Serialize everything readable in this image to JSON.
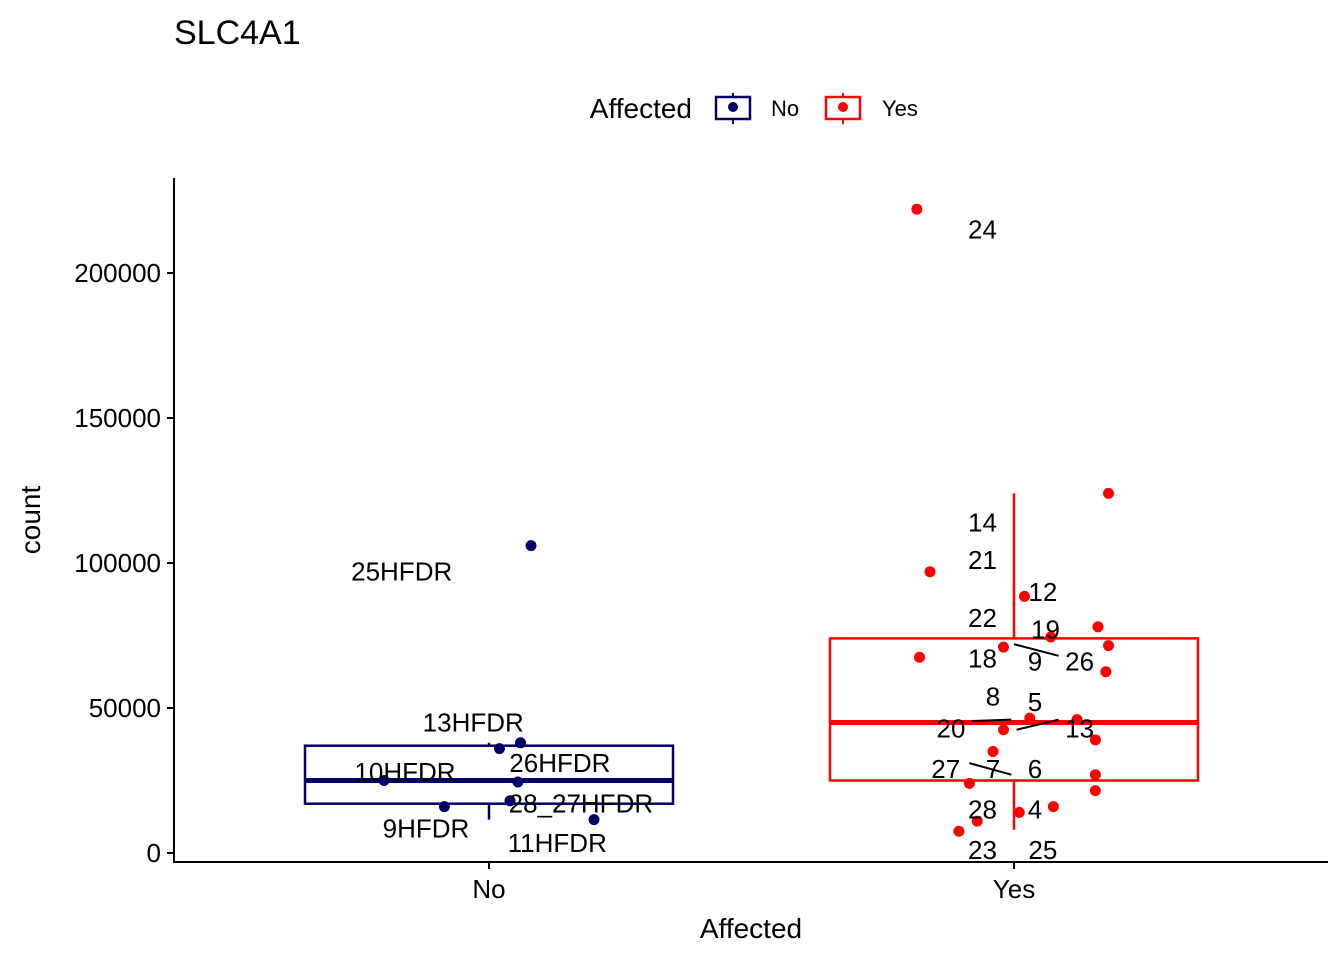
{
  "chart_data": {
    "type": "boxplot",
    "title": "SLC4A1",
    "xlabel": "Affected",
    "ylabel": "count",
    "categories": [
      "No",
      "Yes"
    ],
    "ylim": [
      0,
      230000
    ],
    "y_ticks": [
      {
        "value": 0,
        "label": "0"
      },
      {
        "value": 50000,
        "label": "50000"
      },
      {
        "value": 100000,
        "label": "100000"
      },
      {
        "value": 150000,
        "label": "150000"
      },
      {
        "value": 200000,
        "label": "200000"
      }
    ],
    "legend": {
      "title": "Affected",
      "position": "top",
      "entries": [
        {
          "label": "No",
          "color": "#000066"
        },
        {
          "label": "Yes",
          "color": "#ff0000"
        }
      ]
    },
    "boxes": [
      {
        "category": "No",
        "color": "#000066",
        "q1": 17000,
        "median": 25000,
        "q3": 37000,
        "whisker_low": 11500,
        "whisker_high": 38000
      },
      {
        "category": "Yes",
        "color": "#ff0000",
        "q1": 25000,
        "median": 45000,
        "q3": 74000,
        "whisker_low": 8000,
        "whisker_high": 124000
      }
    ],
    "points": [
      {
        "category": "No",
        "jitter": 0.08,
        "value": 106000,
        "label": "25HFDR",
        "label_dx": -0.07,
        "label_value": 97000,
        "anchor": "end"
      },
      {
        "category": "No",
        "jitter": 0.06,
        "value": 38000,
        "label": "13HFDR",
        "label_dx": -0.03,
        "label_value": 45000,
        "anchor": "middle"
      },
      {
        "category": "No",
        "jitter": 0.02,
        "value": 36000,
        "label": "",
        "label_dx": 0,
        "label_value": 0,
        "anchor": "middle"
      },
      {
        "category": "No",
        "jitter": 0.055,
        "value": 24500,
        "label": "26HFDR",
        "label_dx": 0.135,
        "label_value": 31000,
        "anchor": "middle"
      },
      {
        "category": "No",
        "jitter": 0.04,
        "value": 18000,
        "label": "28_27HFDR",
        "label_dx": 0.175,
        "label_value": 17000,
        "anchor": "middle"
      },
      {
        "category": "No",
        "jitter": -0.085,
        "value": 16000,
        "label": "9HFDR",
        "label_dx": -0.12,
        "label_value": 8500,
        "anchor": "middle"
      },
      {
        "category": "No",
        "jitter": 0.2,
        "value": 11500,
        "label": "11HFDR",
        "label_dx": 0.13,
        "label_value": 3500,
        "anchor": "middle"
      },
      {
        "category": "No",
        "jitter": -0.2,
        "value": 25000,
        "label": "10HFDR",
        "label_dx": -0.16,
        "label_value": 28000,
        "anchor": "middle"
      },
      {
        "category": "Yes",
        "jitter": -0.185,
        "value": 222000,
        "label": "24",
        "label_dx": -0.06,
        "label_value": 215000,
        "anchor": "middle"
      },
      {
        "category": "Yes",
        "jitter": 0.18,
        "value": 124000,
        "label": "14",
        "label_dx": -0.06,
        "label_value": 114000,
        "anchor": "middle"
      },
      {
        "category": "Yes",
        "jitter": -0.16,
        "value": 97000,
        "label": "21",
        "label_dx": -0.06,
        "label_value": 101000,
        "anchor": "middle"
      },
      {
        "category": "Yes",
        "jitter": 0.02,
        "value": 88500,
        "label": "12",
        "label_dx": 0.055,
        "label_value": 90000,
        "anchor": "middle"
      },
      {
        "category": "Yes",
        "jitter": 0.16,
        "value": 78000,
        "label": "22",
        "label_dx": -0.06,
        "label_value": 81000,
        "anchor": "middle"
      },
      {
        "category": "Yes",
        "jitter": 0.07,
        "value": 74500,
        "label": "19",
        "label_dx": 0.06,
        "label_value": 77000,
        "anchor": "middle"
      },
      {
        "category": "Yes",
        "jitter": 0.18,
        "value": 71500,
        "label": "",
        "label_dx": 0,
        "label_value": 0,
        "anchor": "middle"
      },
      {
        "category": "Yes",
        "jitter": -0.02,
        "value": 71000,
        "label": "18",
        "label_dx": -0.06,
        "label_value": 67000,
        "anchor": "middle"
      },
      {
        "category": "Yes",
        "jitter": -0.18,
        "value": 67500,
        "label": "9",
        "label_dx": 0.04,
        "label_value": 66000,
        "anchor": "middle"
      },
      {
        "category": "Yes",
        "jitter": 0.175,
        "value": 62500,
        "label": "26",
        "label_dx": 0.125,
        "label_value": 66000,
        "anchor": "middle"
      },
      {
        "category": "Yes",
        "jitter": 0.03,
        "value": 46500,
        "label": "8",
        "label_dx": -0.04,
        "label_value": 54000,
        "anchor": "middle"
      },
      {
        "category": "Yes",
        "jitter": -0.02,
        "value": 42500,
        "label": "5",
        "label_dx": 0.04,
        "label_value": 52000,
        "anchor": "middle"
      },
      {
        "category": "Yes",
        "jitter": 0.12,
        "value": 46000,
        "label": "20",
        "label_dx": -0.12,
        "label_value": 43000,
        "anchor": "middle"
      },
      {
        "category": "Yes",
        "jitter": 0.155,
        "value": 39000,
        "label": "13",
        "label_dx": 0.125,
        "label_value": 43000,
        "anchor": "middle"
      },
      {
        "category": "Yes",
        "jitter": -0.04,
        "value": 35000,
        "label": "7",
        "label_dx": -0.04,
        "label_value": 29000,
        "anchor": "middle"
      },
      {
        "category": "Yes",
        "jitter": 0.155,
        "value": 27000,
        "label": "27",
        "label_dx": -0.13,
        "label_value": 29000,
        "anchor": "middle"
      },
      {
        "category": "Yes",
        "jitter": -0.085,
        "value": 24000,
        "label": "6",
        "label_dx": 0.04,
        "label_value": 29000,
        "anchor": "middle"
      },
      {
        "category": "Yes",
        "jitter": 0.155,
        "value": 21500,
        "label": "",
        "label_dx": 0,
        "label_value": 0,
        "anchor": "middle"
      },
      {
        "category": "Yes",
        "jitter": 0.075,
        "value": 16000,
        "label": "4",
        "label_dx": 0.04,
        "label_value": 15000,
        "anchor": "middle"
      },
      {
        "category": "Yes",
        "jitter": 0.01,
        "value": 14000,
        "label": "28",
        "label_dx": -0.06,
        "label_value": 15000,
        "anchor": "middle"
      },
      {
        "category": "Yes",
        "jitter": -0.07,
        "value": 11000,
        "label": "23",
        "label_dx": -0.06,
        "label_value": 1000,
        "anchor": "middle"
      },
      {
        "category": "Yes",
        "jitter": -0.105,
        "value": 7500,
        "label": "25",
        "label_dx": 0.055,
        "label_value": 1000,
        "anchor": "middle"
      }
    ],
    "connectors": [
      {
        "category": "Yes",
        "x1": 0.0,
        "y1": 72000,
        "x2": 0.085,
        "y2": 68000
      },
      {
        "category": "Yes",
        "x1": -0.08,
        "y1": 45500,
        "x2": -0.005,
        "y2": 46000
      },
      {
        "category": "Yes",
        "x1": 0.005,
        "y1": 42500,
        "x2": 0.085,
        "y2": 46000
      },
      {
        "category": "Yes",
        "x1": -0.085,
        "y1": 31000,
        "x2": -0.005,
        "y2": 27000
      }
    ],
    "background_color": "#ffffff",
    "line_color": "#000000"
  }
}
